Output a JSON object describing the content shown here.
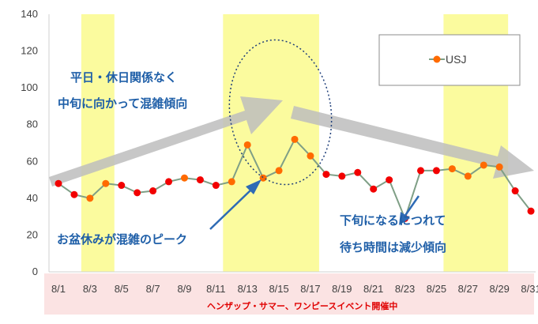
{
  "chart_data": {
    "type": "line",
    "title": "",
    "xlabel": "",
    "ylabel": "",
    "ylim": [
      0,
      140
    ],
    "yticks": [
      0,
      20,
      40,
      60,
      80,
      100,
      120,
      140
    ],
    "grid": false,
    "legend_position": "top-right",
    "x": [
      "8/1",
      "8/2",
      "8/3",
      "8/4",
      "8/5",
      "8/6",
      "8/7",
      "8/8",
      "8/9",
      "8/10",
      "8/11",
      "8/12",
      "8/13",
      "8/14",
      "8/15",
      "8/16",
      "8/17",
      "8/18",
      "8/19",
      "8/20",
      "8/21",
      "8/22",
      "8/23",
      "8/24",
      "8/25",
      "8/26",
      "8/27",
      "8/28",
      "8/29",
      "8/30",
      "8/31"
    ],
    "xtick_labels": [
      "8/1",
      "8/3",
      "8/5",
      "8/7",
      "8/9",
      "8/11",
      "8/13",
      "8/15",
      "8/17",
      "8/19",
      "8/21",
      "8/23",
      "8/25",
      "8/27",
      "8/29",
      "8/31"
    ],
    "series": [
      {
        "name": "USJ",
        "values": [
          48,
          42,
          40,
          48,
          47,
          43,
          44,
          49,
          51,
          50,
          47,
          49,
          69,
          51,
          55,
          72,
          63,
          53,
          52,
          54,
          45,
          50,
          29,
          55,
          55,
          56,
          52,
          58,
          57,
          44,
          33
        ]
      }
    ],
    "point_colors": [
      "red",
      "red",
      "orange",
      "orange",
      "red",
      "red",
      "red",
      "red",
      "orange",
      "red",
      "red",
      "orange",
      "orange",
      "orange",
      "orange",
      "orange",
      "orange",
      "red",
      "red",
      "red",
      "red",
      "red",
      "red",
      "red",
      "red",
      "orange",
      "orange",
      "orange",
      "orange",
      "red",
      "red"
    ],
    "highlight_ranges": [
      [
        "8/3",
        "8/4"
      ],
      [
        "8/12",
        "8/17"
      ],
      [
        "8/26",
        "8/29"
      ]
    ],
    "annotations": [
      "平日・休日関係なく",
      "中旬に向かって混雑傾向",
      "お盆休みが混雑のピーク",
      "下旬になるにつれて",
      "待ち時間は減少傾向"
    ],
    "footer_note": "ヘンザップ・サマー、ワンピースイベント開催中",
    "colors": {
      "line": "#7f9f86",
      "marker_red": "#f20000",
      "marker_orange": "#ff6a00",
      "highlight": "#fbfb9e",
      "footer_band": "#fbe3e3",
      "annotation_text": "#1f5fa8",
      "footer_text": "#e00000",
      "arrow": "#bdbdbd"
    }
  }
}
